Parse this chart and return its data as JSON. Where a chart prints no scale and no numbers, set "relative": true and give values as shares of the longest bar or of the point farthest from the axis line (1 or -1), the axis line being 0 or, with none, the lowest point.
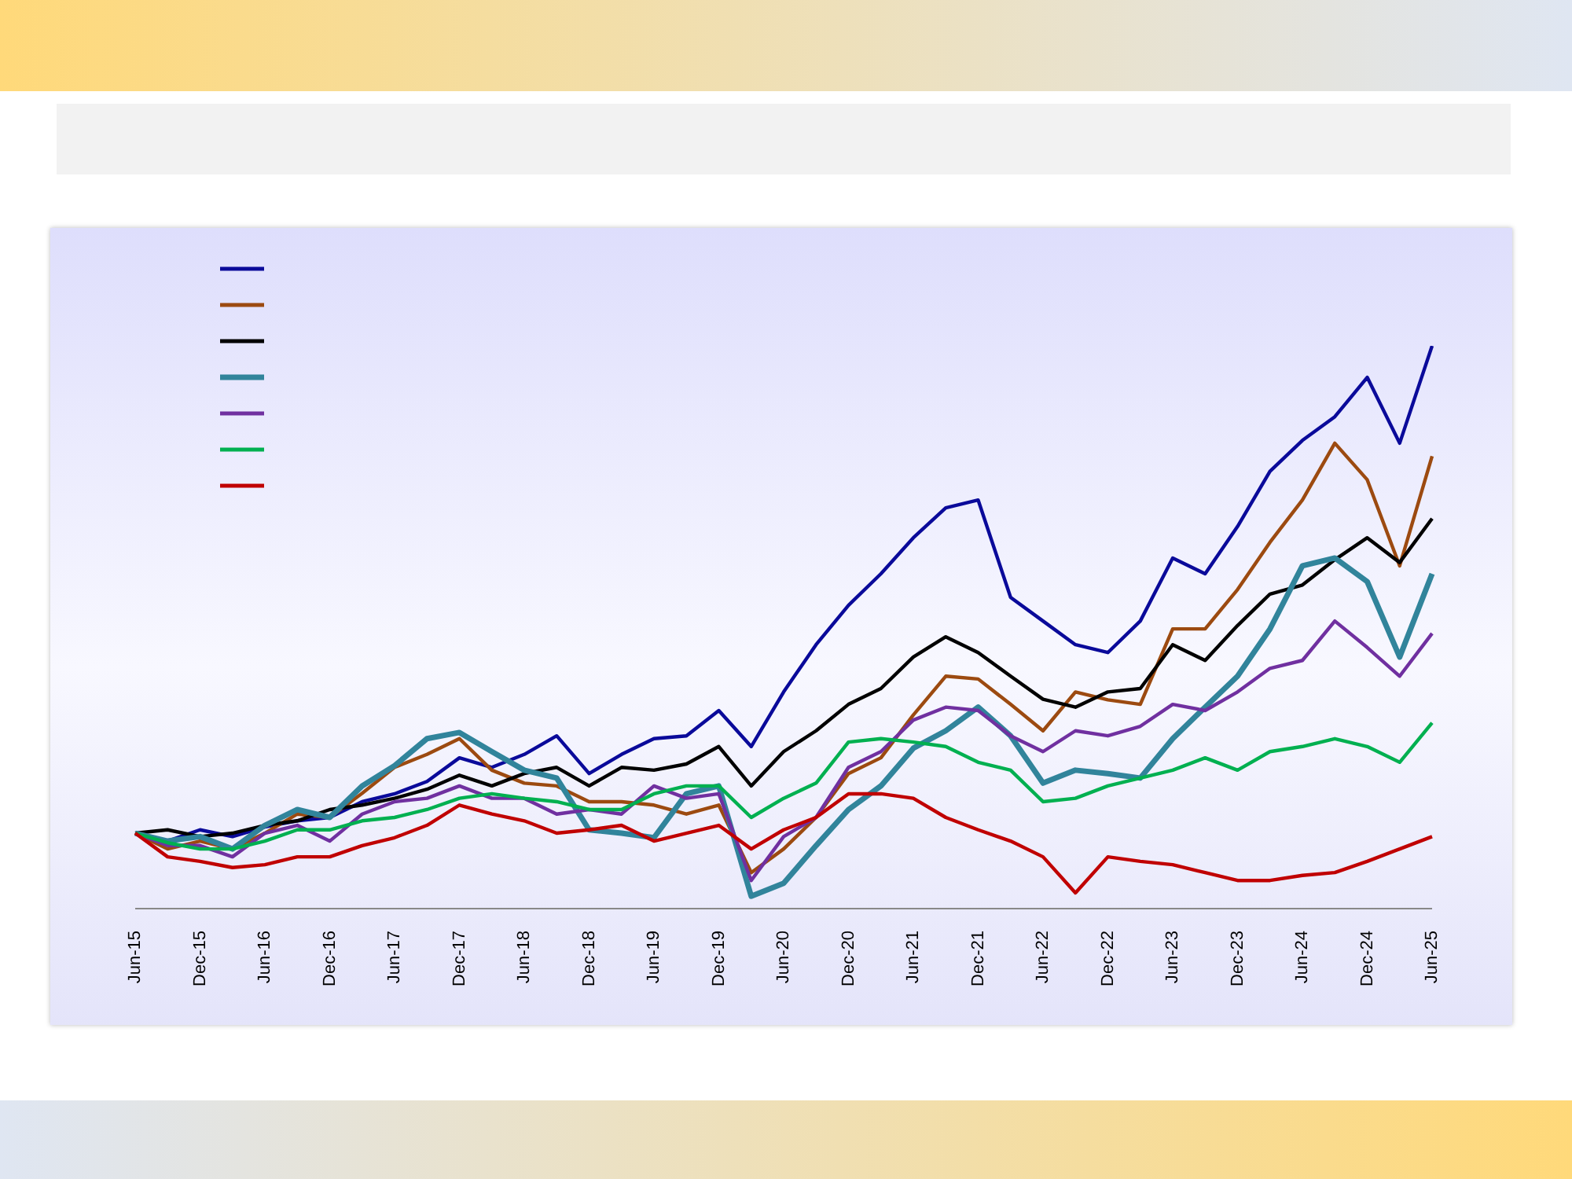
{
  "chart_data": {
    "type": "line",
    "relative": true,
    "grid": false,
    "categories": [
      "Jun-15",
      null,
      "Dec-15",
      null,
      "Jun-16",
      null,
      "Dec-16",
      null,
      "Jun-17",
      null,
      "Dec-17",
      null,
      "Jun-18",
      null,
      "Dec-18",
      null,
      "Jun-19",
      null,
      "Dec-19",
      null,
      "Jun-20",
      null,
      "Dec-20",
      null,
      "Jun-21",
      null,
      "Dec-21",
      null,
      "Jun-22",
      null,
      "Dec-22",
      null,
      "Jun-23",
      null,
      "Dec-23",
      null,
      "Jun-24",
      null,
      "Dec-24",
      null,
      "Jun-25"
    ],
    "series": [
      {
        "color": "#0a0a9a",
        "values": [
          0.134,
          0.12,
          0.14,
          0.128,
          0.145,
          0.156,
          0.162,
          0.19,
          0.204,
          0.226,
          0.268,
          0.251,
          0.274,
          0.307,
          0.24,
          0.274,
          0.302,
          0.307,
          0.352,
          0.288,
          0.385,
          0.469,
          0.539,
          0.595,
          0.659,
          0.712,
          0.726,
          0.553,
          0.511,
          0.469,
          0.455,
          0.511,
          0.623,
          0.595,
          0.679,
          0.777,
          0.832,
          0.874,
          0.944,
          0.827,
          1
        ]
      },
      {
        "color": "#9c4a10",
        "values": [
          0.134,
          0.106,
          0.12,
          0.106,
          0.134,
          0.168,
          0.162,
          0.205,
          0.251,
          0.274,
          0.302,
          0.246,
          0.223,
          0.218,
          0.19,
          0.19,
          0.184,
          0.168,
          0.184,
          0.064,
          0.106,
          0.162,
          0.24,
          0.268,
          0.344,
          0.413,
          0.408,
          0.363,
          0.316,
          0.385,
          0.371,
          0.363,
          0.497,
          0.497,
          0.567,
          0.651,
          0.726,
          0.827,
          0.762,
          0.609,
          0.804
        ]
      },
      {
        "color": "#000000",
        "values": [
          0.134,
          0.14,
          0.128,
          0.134,
          0.148,
          0.156,
          0.176,
          0.184,
          0.196,
          0.212,
          0.237,
          0.218,
          0.24,
          0.251,
          0.218,
          0.251,
          0.246,
          0.257,
          0.288,
          0.218,
          0.279,
          0.316,
          0.363,
          0.391,
          0.447,
          0.483,
          0.455,
          0.413,
          0.372,
          0.358,
          0.385,
          0.391,
          0.469,
          0.441,
          0.503,
          0.559,
          0.575,
          0.62,
          0.659,
          0.615,
          0.693
        ]
      },
      {
        "color": "#31849b",
        "values": [
          0.134,
          0.12,
          0.128,
          0.106,
          0.148,
          0.176,
          0.162,
          0.218,
          0.254,
          0.302,
          0.313,
          0.279,
          0.246,
          0.232,
          0.14,
          0.134,
          0.126,
          0.204,
          0.218,
          0.022,
          0.045,
          0.112,
          0.176,
          0.218,
          0.285,
          0.316,
          0.358,
          0.307,
          0.223,
          0.246,
          0.24,
          0.232,
          0.302,
          0.358,
          0.413,
          0.497,
          0.609,
          0.623,
          0.581,
          0.447,
          0.595
        ]
      },
      {
        "color": "#7030a0",
        "values": [
          0.134,
          0.112,
          0.112,
          0.092,
          0.134,
          0.148,
          0.12,
          0.168,
          0.19,
          0.196,
          0.218,
          0.196,
          0.196,
          0.168,
          0.176,
          0.168,
          0.218,
          0.196,
          0.204,
          0.05,
          0.128,
          0.162,
          0.251,
          0.279,
          0.335,
          0.358,
          0.352,
          0.307,
          0.279,
          0.316,
          0.307,
          0.324,
          0.363,
          0.352,
          0.385,
          0.427,
          0.441,
          0.511,
          0.464,
          0.413,
          0.489
        ]
      },
      {
        "color": "#00b050",
        "values": [
          0.134,
          0.117,
          0.106,
          0.106,
          0.12,
          0.14,
          0.14,
          0.156,
          0.162,
          0.176,
          0.196,
          0.204,
          0.196,
          0.19,
          0.176,
          0.176,
          0.204,
          0.218,
          0.218,
          0.162,
          0.196,
          0.223,
          0.296,
          0.302,
          0.296,
          0.288,
          0.26,
          0.246,
          0.19,
          0.196,
          0.218,
          0.232,
          0.246,
          0.268,
          0.246,
          0.279,
          0.288,
          0.302,
          0.288,
          0.26,
          0.33
        ]
      },
      {
        "color": "#c00000",
        "values": [
          0.134,
          0.092,
          0.084,
          0.073,
          0.078,
          0.092,
          0.092,
          0.112,
          0.126,
          0.148,
          0.184,
          0.168,
          0.156,
          0.134,
          0.14,
          0.148,
          0.12,
          0.134,
          0.148,
          0.106,
          0.14,
          0.162,
          0.204,
          0.204,
          0.196,
          0.162,
          0.14,
          0.12,
          0.092,
          0.028,
          0.092,
          0.084,
          0.078,
          0.064,
          0.05,
          0.05,
          0.059,
          0.064,
          0.084,
          0.106,
          0.128
        ]
      }
    ]
  }
}
